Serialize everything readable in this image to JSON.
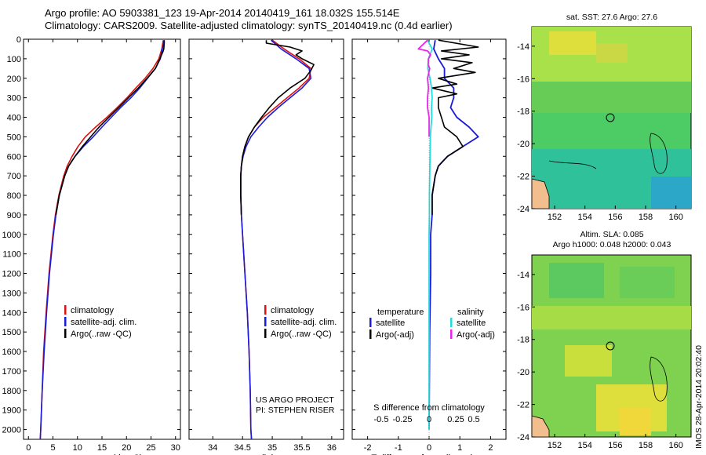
{
  "header": {
    "title_line1": "Argo profile: AO 5903381_123 19-Apr-2014 20140419_161 18.032S 155.514E",
    "title_line2": "Climatology: CARS2009. Satellite-adjusted climatology: synTS_20140419.nc (0.4d earlier)"
  },
  "side_text": {
    "timestamp": "IMOS 28-Apr-2014 20:02:40"
  },
  "colors": {
    "climatology": "#dd1111",
    "satellite": "#1a1adc",
    "argo": "#000000",
    "salinity_satellite": "#22dddd",
    "salinity_argo": "#ee22ee",
    "land": "#f2be8e"
  },
  "chart_data": [
    {
      "type": "line",
      "id": "temperature",
      "xlabel": "temperature (deg C)",
      "xlim": [
        -1,
        31
      ],
      "xticks": [
        0,
        5,
        10,
        15,
        20,
        25,
        30
      ],
      "ylim": [
        2050,
        0
      ],
      "yticks": [
        0,
        100,
        200,
        300,
        400,
        500,
        600,
        700,
        800,
        900,
        1000,
        1100,
        1200,
        1300,
        1400,
        1500,
        1600,
        1700,
        1800,
        1900,
        2000
      ],
      "legend": [
        "climatology",
        "satellite-adj. clim.",
        "Argo(..raw -QC)"
      ],
      "series": [
        {
          "name": "climatology",
          "depth": [
            5,
            50,
            100,
            150,
            200,
            250,
            300,
            350,
            400,
            450,
            500,
            550,
            600,
            650,
            700,
            800,
            900,
            1000,
            1200,
            1400,
            1600,
            1800,
            2000,
            2050
          ],
          "values": [
            27.5,
            27.2,
            26.6,
            25.4,
            23.8,
            21.9,
            20.1,
            18.1,
            16.0,
            13.7,
            11.6,
            10.1,
            8.9,
            7.9,
            7.2,
            6.2,
            5.5,
            5.0,
            4.2,
            3.6,
            3.1,
            2.8,
            2.5,
            2.4
          ]
        },
        {
          "name": "satellite-adj. clim.",
          "depth": [
            5,
            50,
            100,
            150,
            200,
            250,
            300,
            350,
            400,
            450,
            500,
            550,
            600,
            650,
            700,
            800,
            900,
            1000,
            1200,
            1400,
            1600,
            1800,
            2000,
            2050
          ],
          "values": [
            27.7,
            27.3,
            26.9,
            25.9,
            24.3,
            22.7,
            20.9,
            18.8,
            16.9,
            15.0,
            13.2,
            11.2,
            9.5,
            8.2,
            7.4,
            6.3,
            5.6,
            5.1,
            4.3,
            3.7,
            3.2,
            2.8,
            2.5,
            2.4
          ]
        },
        {
          "name": "Argo(..raw -QC)",
          "depth": [
            5,
            20,
            50,
            60,
            100,
            150,
            200,
            250,
            300,
            350,
            400,
            450,
            500,
            550,
            600,
            650,
            700,
            800,
            900
          ],
          "values": [
            27.7,
            27.7,
            27.6,
            27.5,
            26.8,
            25.9,
            24.2,
            22.4,
            20.4,
            18.4,
            16.4,
            14.4,
            12.7,
            11.0,
            9.5,
            8.2,
            7.4,
            6.3,
            5.6
          ]
        }
      ]
    },
    {
      "type": "line",
      "id": "salinity",
      "xlabel": "salinity",
      "xlim": [
        33.6,
        36.2
      ],
      "xticks": [
        34,
        34.5,
        35,
        35.5,
        36
      ],
      "ylim": [
        2050,
        0
      ],
      "legend": [
        "climatology",
        "satellite-adj. clim.",
        "Argo(..raw -QC)"
      ],
      "annotation": [
        "US ARGO PROJECT",
        "PI: STEPHEN RISER"
      ],
      "series": [
        {
          "name": "climatology",
          "depth": [
            5,
            50,
            100,
            150,
            200,
            250,
            300,
            350,
            400,
            450,
            500,
            550,
            600,
            650,
            700,
            800,
            900,
            1000,
            1200,
            1400,
            1600,
            1800,
            2000,
            2050
          ],
          "values": [
            35.0,
            35.2,
            35.45,
            35.65,
            35.62,
            35.45,
            35.25,
            35.05,
            34.85,
            34.7,
            34.6,
            34.54,
            34.5,
            34.48,
            34.47,
            34.47,
            34.48,
            34.5,
            34.54,
            34.58,
            34.61,
            34.63,
            34.64,
            34.65
          ]
        },
        {
          "name": "satellite-adj. clim.",
          "depth": [
            5,
            50,
            100,
            150,
            200,
            250,
            300,
            350,
            400,
            450,
            500,
            550,
            600,
            650,
            700,
            800,
            900,
            1000,
            1200,
            1400,
            1600,
            1800,
            2000,
            2050
          ],
          "values": [
            34.98,
            35.15,
            35.4,
            35.62,
            35.65,
            35.5,
            35.3,
            35.1,
            34.92,
            34.77,
            34.64,
            34.56,
            34.51,
            34.48,
            34.47,
            34.47,
            34.48,
            34.5,
            34.54,
            34.58,
            34.61,
            34.63,
            34.64,
            34.65
          ]
        },
        {
          "name": "Argo(..raw -QC)",
          "depth": [
            5,
            20,
            40,
            60,
            80,
            100,
            130,
            160,
            200,
            250,
            300,
            350,
            400,
            450,
            500,
            550,
            600,
            650,
            700,
            800,
            900
          ],
          "values": [
            34.9,
            34.9,
            35.3,
            35.5,
            35.4,
            35.5,
            35.7,
            35.65,
            35.55,
            35.3,
            35.1,
            34.95,
            34.82,
            34.7,
            34.6,
            34.54,
            34.5,
            34.48,
            34.47,
            34.47,
            34.48
          ]
        }
      ]
    },
    {
      "type": "line",
      "id": "differences",
      "xlabel": "T difference from climatology",
      "xlabel_top": "S difference from climatology",
      "xlim": [
        -2.5,
        2.5
      ],
      "xticks": [
        -2,
        -1,
        0,
        1,
        2
      ],
      "xticks_top": [
        -0.5,
        -0.25,
        0,
        0.25,
        0.5
      ],
      "ylim": [
        2050,
        0
      ],
      "legend_temperature": {
        "title": "temperature",
        "items": [
          "satellite",
          "Argo(-adj)"
        ]
      },
      "legend_salinity": {
        "title": "salinity",
        "items": [
          "satellite",
          "Argo(-adj)"
        ]
      },
      "series": [
        {
          "name": "temperature satellite",
          "depth": [
            5,
            50,
            100,
            150,
            200,
            250,
            300,
            350,
            400,
            450,
            500,
            550,
            600,
            650,
            700,
            800,
            900,
            1000,
            1200,
            1500,
            2000
          ],
          "values": [
            0.2,
            0.15,
            0.3,
            0.5,
            0.5,
            0.8,
            0.8,
            0.7,
            0.9,
            1.3,
            1.6,
            1.1,
            0.6,
            0.3,
            0.2,
            0.1,
            0.1,
            0.05,
            0.05,
            0.02,
            0.0
          ]
        },
        {
          "name": "temperature Argo(-adj)",
          "depth": [
            5,
            40,
            60,
            80,
            100,
            120,
            150,
            170,
            200,
            230,
            250,
            280,
            300,
            350,
            400,
            450,
            500,
            550,
            600,
            650,
            700,
            800,
            900
          ],
          "values": [
            0.3,
            1.6,
            0.4,
            1.3,
            0.4,
            1.4,
            0.8,
            1.5,
            0.3,
            0.9,
            0.1,
            0.9,
            0.3,
            0.3,
            0.4,
            0.5,
            0.9,
            1.1,
            0.6,
            0.3,
            0.2,
            0.1,
            0.1
          ]
        },
        {
          "name": "salinity satellite",
          "depth": [
            5,
            50,
            100,
            150,
            200,
            250,
            300,
            350,
            400,
            450,
            500,
            600,
            700,
            800,
            900,
            1000,
            1500,
            2000
          ],
          "values": [
            -0.05,
            0.1,
            -0.02,
            -0.04,
            0.03,
            0.08,
            0.1,
            0.08,
            0.09,
            0.06,
            0.04,
            0.03,
            0.02,
            0.01,
            0.01,
            0.0,
            0.0,
            0.0
          ]
        },
        {
          "name": "salinity Argo(-adj)",
          "depth": [
            5,
            50,
            60,
            80,
            100,
            130,
            150,
            200,
            250,
            300,
            350,
            400,
            450,
            500
          ],
          "values": [
            -0.05,
            -0.35,
            -0.05,
            0.05,
            -0.02,
            -0.03,
            0.02,
            -0.05,
            -0.02,
            -0.05,
            -0.05,
            0.0,
            0.0,
            0.0
          ]
        }
      ]
    },
    {
      "type": "heatmap",
      "id": "sst_map",
      "title": "sat. SST: 27.6 Argo: 27.6",
      "xticks": [
        152,
        154,
        156,
        158,
        160
      ],
      "yticks": [
        -14,
        -16,
        -18,
        -20,
        -22,
        -24
      ],
      "xlim": [
        150.5,
        161
      ],
      "ylim": [
        -24,
        -12.8
      ],
      "profile_marker": {
        "lon": 155.514,
        "lat": -18.032
      }
    },
    {
      "type": "heatmap",
      "id": "sla_map",
      "title_line1": "Altim. SLA: 0.085",
      "title_line2": "Argo h1000: 0.048 h2000: 0.043",
      "xticks": [
        152,
        154,
        156,
        158,
        160
      ],
      "yticks": [
        -14,
        -16,
        -18,
        -20,
        -22,
        -24
      ],
      "xlim": [
        150.5,
        161
      ],
      "ylim": [
        -24,
        -12.8
      ],
      "profile_marker": {
        "lon": 155.514,
        "lat": -18.032
      }
    }
  ]
}
